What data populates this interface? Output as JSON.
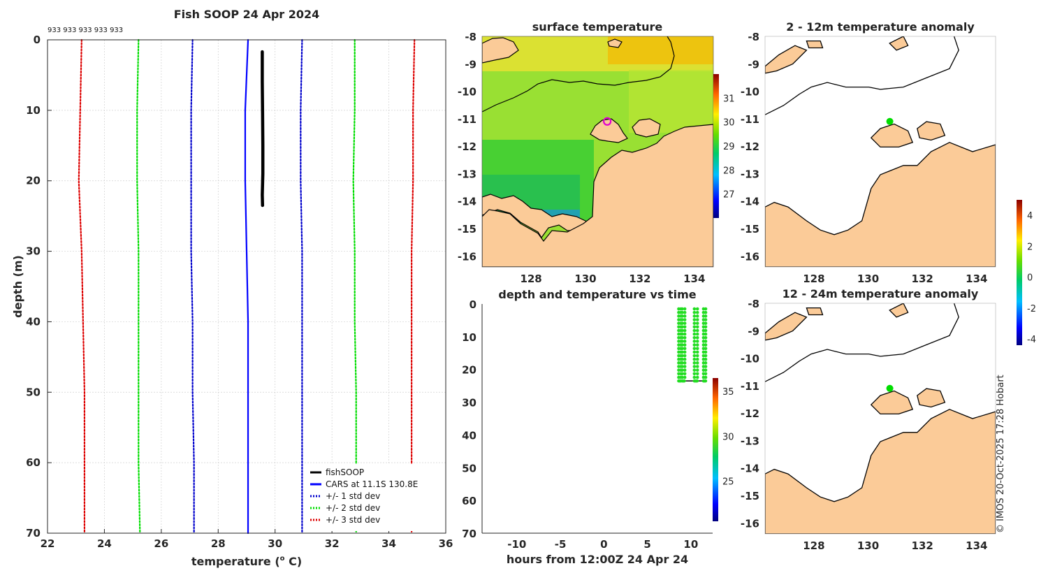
{
  "figure": {
    "credit": "© IMOS 20-Oct-2025 17:28 Hobart",
    "colors": {
      "land": "#FBCB98",
      "coast": "#000000"
    }
  },
  "chart_data": [
    {
      "id": "profile",
      "type": "line",
      "title": "Fish SOOP 24 Apr 2024",
      "xlabel": "temperature (",
      "xlabel_sup": "o",
      "xlabel_end": " C)",
      "ylabel": "depth (m)",
      "xlim": [
        22,
        36
      ],
      "ylim": [
        0,
        70
      ],
      "xticks": [
        "22",
        "24",
        "26",
        "28",
        "30",
        "32",
        "34",
        "36"
      ],
      "yticks": [
        "0",
        "10",
        "20",
        "30",
        "40",
        "50",
        "60",
        "70"
      ],
      "annotation": "933 933 933 933 933",
      "legend_position": "bottom-right",
      "series": [
        {
          "name": "fishSOOP",
          "color": "#000000",
          "style": "solid",
          "x": [
            29.55,
            29.55,
            29.56,
            29.57,
            29.57,
            29.55,
            29.56
          ],
          "y": [
            1.7,
            6,
            10,
            15,
            19,
            22,
            23.5
          ]
        },
        {
          "name": "CARS at 11.1S 130.8E",
          "color": "#0000FF",
          "style": "solid",
          "x": [
            29.05,
            29.0,
            28.95,
            28.95,
            29.0,
            29.05,
            29.05,
            29.05
          ],
          "y": [
            0,
            5,
            10,
            20,
            30,
            40,
            55,
            70
          ]
        },
        {
          "name": "+/- 1 std dev",
          "color": "#0000CC",
          "style": "dotted",
          "x": [
            27.1,
            27.05,
            27.05,
            27.05,
            27.1,
            27.1,
            27.15,
            27.15
          ],
          "y": [
            0,
            10,
            20,
            30,
            40,
            50,
            60,
            70
          ],
          "x2": [
            30.95,
            30.9,
            30.9,
            30.95,
            30.95,
            30.95,
            30.95,
            30.95
          ]
        },
        {
          "name": "+/- 2 std dev",
          "color": "#00DD00",
          "style": "dotted",
          "x": [
            25.2,
            25.15,
            25.15,
            25.2,
            25.2,
            25.2,
            25.2,
            25.25
          ],
          "y": [
            0,
            10,
            20,
            30,
            40,
            50,
            60,
            70
          ],
          "x2": [
            32.8,
            32.8,
            32.75,
            32.8,
            32.8,
            32.85,
            32.85,
            32.85
          ]
        },
        {
          "name": "+/- 3 std dev",
          "color": "#DD0000",
          "style": "dotted",
          "x": [
            23.2,
            23.15,
            23.1,
            23.2,
            23.25,
            23.3,
            23.3,
            23.3
          ],
          "y": [
            0,
            10,
            20,
            30,
            40,
            50,
            60,
            70
          ],
          "x2": [
            34.9,
            34.85,
            34.85,
            34.8,
            34.8,
            34.8,
            34.8,
            34.8
          ]
        }
      ]
    },
    {
      "id": "sst",
      "type": "heatmap",
      "title": "surface temperature",
      "xlim": [
        126.2,
        134.7
      ],
      "ylim": [
        -16.4,
        -8
      ],
      "xticks": [
        128,
        130,
        132,
        134
      ],
      "yticks": [
        -8,
        -9,
        -10,
        -11,
        -12,
        -13,
        -14,
        -15,
        -16
      ],
      "colorbar": {
        "range": [
          26,
          32
        ],
        "ticks": [
          "27",
          "28",
          "29",
          "30",
          "31"
        ],
        "ticks_values": [
          27,
          28,
          29,
          30,
          31
        ]
      },
      "marker": {
        "lon": 130.8,
        "lat": -11.1,
        "color": "#E000D0"
      }
    },
    {
      "id": "anom_2_12",
      "type": "heatmap",
      "title": "2 - 12m temperature anomaly",
      "xlim": [
        126.2,
        134.7
      ],
      "ylim": [
        -16.4,
        -8
      ],
      "xticks": [
        128,
        130,
        132,
        134
      ],
      "yticks": [
        -8,
        -9,
        -10,
        -11,
        -12,
        -13,
        -14,
        -15,
        -16
      ],
      "marker": {
        "lon": 130.8,
        "lat": -11.1,
        "color": "#00DD00"
      }
    },
    {
      "id": "anom_12_24",
      "type": "heatmap",
      "title": "12 - 24m temperature anomaly",
      "xlim": [
        126.2,
        134.7
      ],
      "ylim": [
        -16.4,
        -8
      ],
      "xticks": [
        128,
        130,
        132,
        134
      ],
      "yticks": [
        -8,
        -9,
        -10,
        -11,
        -12,
        -13,
        -14,
        -15,
        -16
      ],
      "marker": {
        "lon": 130.8,
        "lat": -11.1,
        "color": "#00DD00"
      }
    },
    {
      "id": "anom_colorbar",
      "type": "heatmap",
      "range": [
        -4.4,
        5
      ],
      "ticks": [
        "4",
        "2",
        "0",
        "-2",
        "-4"
      ],
      "ticks_values": [
        4,
        2,
        0,
        -2,
        -4
      ]
    },
    {
      "id": "timeseries",
      "type": "scatter",
      "title": "depth and temperature vs time",
      "xlabel": "hours from 12:00Z 24 Apr 24",
      "xlim": [
        -14,
        12.5
      ],
      "ylim": [
        0,
        70
      ],
      "xticks": [
        "-10",
        "-5",
        "0",
        "5",
        "10"
      ],
      "xticks_values": [
        -10,
        -5,
        0,
        5,
        10
      ],
      "yticks": [
        "0",
        "10",
        "20",
        "30",
        "40",
        "50",
        "60",
        "70"
      ],
      "colorbar": {
        "range": [
          20.5,
          36.5
        ],
        "ticks": [
          "35",
          "30",
          "25"
        ],
        "ticks_values": [
          35,
          30,
          25
        ]
      },
      "point_color": "#22DD22",
      "casts": [
        {
          "t0": 8.6,
          "t1": 8.85
        },
        {
          "t0": 9.0,
          "t1": 9.3
        },
        {
          "t0": 10.4,
          "t1": 10.75
        },
        {
          "t0": 11.45,
          "t1": 11.7
        }
      ],
      "bottom_depth": 23.5,
      "top_depth": 1.5
    }
  ]
}
